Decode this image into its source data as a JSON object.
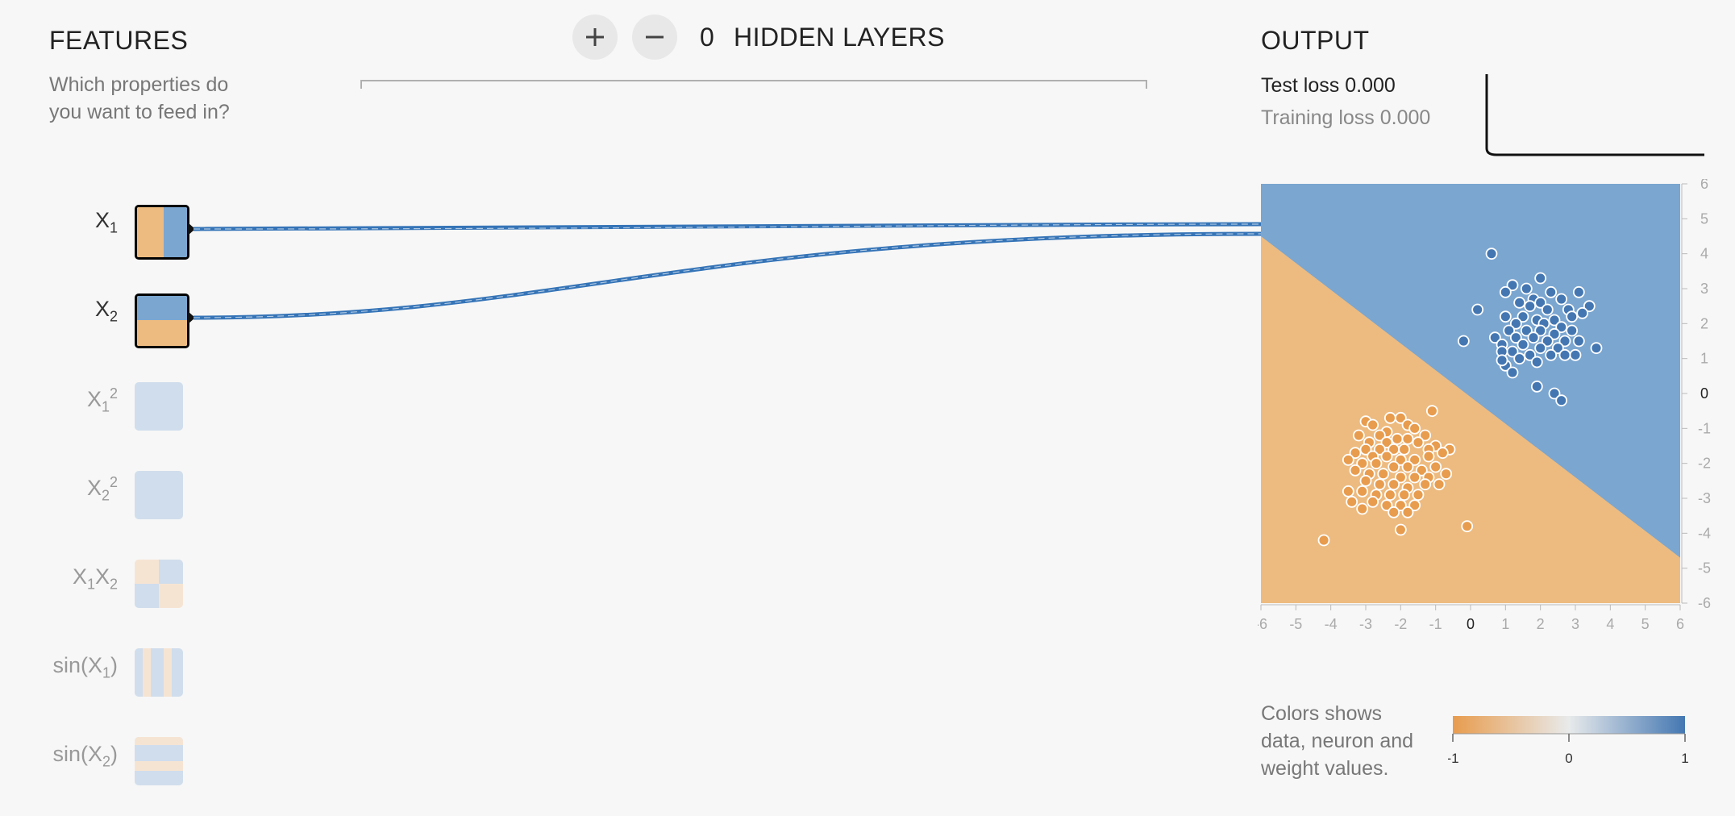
{
  "features": {
    "title": "FEATURES",
    "subtitle_line1": "Which properties do",
    "subtitle_line2": "you want to feed in?",
    "items": [
      {
        "base": "X",
        "sub": "1",
        "sup": "",
        "active": true
      },
      {
        "base": "X",
        "sub": "2",
        "sup": "",
        "active": true
      },
      {
        "base": "X",
        "sub": "1",
        "sup": "2",
        "active": false
      },
      {
        "base": "X",
        "sub": "2",
        "sup": "2",
        "active": false
      },
      {
        "base": "X",
        "sub": "1",
        "base2": "X",
        "sub2": "2",
        "active": false
      },
      {
        "base": "sin(X",
        "sub": "1",
        "tail": ")",
        "active": false
      },
      {
        "base": "sin(X",
        "sub": "2",
        "tail": ")",
        "active": false
      }
    ]
  },
  "hidden_layers": {
    "add_icon": "plus-icon",
    "remove_icon": "minus-icon",
    "count": "0",
    "label": "HIDDEN LAYERS"
  },
  "output": {
    "title": "OUTPUT",
    "test_loss_label": "Test loss",
    "test_loss_value": "0.000",
    "training_loss_label": "Training loss",
    "training_loss_value": "0.000"
  },
  "legend": {
    "line1": "Colors shows",
    "line2": "data, neuron and",
    "line3": "weight values.",
    "ticks": [
      "-1",
      "0",
      "1"
    ]
  },
  "colors": {
    "positive": "#4477b2",
    "negative": "#e89c4e",
    "positive_region": "#7ba6d0",
    "negative_region": "#edbb80",
    "link": "#3574b7"
  },
  "chart_data": {
    "type": "scatter",
    "xlim": [
      -6,
      6
    ],
    "ylim": [
      -6,
      6
    ],
    "x_ticks": [
      "-6",
      "-5",
      "-4",
      "-3",
      "-2",
      "-1",
      "0",
      "1",
      "2",
      "3",
      "4",
      "5",
      "6"
    ],
    "y_ticks": [
      "6",
      "5",
      "4",
      "3",
      "2",
      "1",
      "0",
      "-1",
      "-2",
      "-3",
      "-4",
      "-5",
      "-6"
    ],
    "decision_boundary": {
      "x1": -6,
      "y1": 4.5,
      "x2": 6,
      "y2": -4.7
    },
    "series": [
      {
        "class": "positive",
        "points": [
          [
            0.6,
            4.0
          ],
          [
            2.0,
            3.3
          ],
          [
            1.2,
            3.1
          ],
          [
            1.0,
            2.9
          ],
          [
            1.6,
            3.0
          ],
          [
            2.3,
            2.9
          ],
          [
            3.1,
            2.9
          ],
          [
            1.8,
            2.7
          ],
          [
            2.6,
            2.7
          ],
          [
            1.4,
            2.6
          ],
          [
            2.0,
            2.6
          ],
          [
            3.4,
            2.5
          ],
          [
            0.2,
            2.4
          ],
          [
            1.7,
            2.5
          ],
          [
            2.2,
            2.4
          ],
          [
            3.2,
            2.3
          ],
          [
            2.8,
            2.4
          ],
          [
            1.0,
            2.2
          ],
          [
            1.5,
            2.2
          ],
          [
            1.9,
            2.1
          ],
          [
            2.4,
            2.1
          ],
          [
            2.9,
            2.2
          ],
          [
            1.3,
            2.0
          ],
          [
            2.1,
            2.0
          ],
          [
            2.6,
            1.9
          ],
          [
            1.1,
            1.8
          ],
          [
            1.6,
            1.8
          ],
          [
            2.0,
            1.8
          ],
          [
            2.4,
            1.7
          ],
          [
            2.9,
            1.8
          ],
          [
            0.7,
            1.6
          ],
          [
            -0.2,
            1.5
          ],
          [
            1.3,
            1.6
          ],
          [
            1.8,
            1.6
          ],
          [
            2.2,
            1.5
          ],
          [
            2.7,
            1.5
          ],
          [
            3.1,
            1.5
          ],
          [
            0.9,
            1.4
          ],
          [
            1.5,
            1.4
          ],
          [
            2.0,
            1.3
          ],
          [
            2.5,
            1.3
          ],
          [
            3.6,
            1.3
          ],
          [
            0.9,
            1.2
          ],
          [
            1.2,
            1.2
          ],
          [
            1.7,
            1.1
          ],
          [
            2.3,
            1.1
          ],
          [
            2.7,
            1.1
          ],
          [
            3.0,
            1.1
          ],
          [
            1.0,
            0.8
          ],
          [
            1.4,
            1.0
          ],
          [
            1.9,
            0.9
          ],
          [
            1.2,
            0.6
          ],
          [
            1.9,
            0.2
          ],
          [
            2.4,
            0.0
          ],
          [
            2.6,
            -0.2
          ],
          [
            0.9,
            0.95
          ]
        ]
      },
      {
        "class": "negative",
        "points": [
          [
            -1.1,
            -0.5
          ],
          [
            -2.3,
            -0.7
          ],
          [
            -2.0,
            -0.7
          ],
          [
            -3.0,
            -0.8
          ],
          [
            -2.8,
            -0.9
          ],
          [
            -1.8,
            -0.9
          ],
          [
            -1.6,
            -1.0
          ],
          [
            -2.4,
            -1.1
          ],
          [
            -1.3,
            -1.2
          ],
          [
            -3.2,
            -1.2
          ],
          [
            -2.6,
            -1.2
          ],
          [
            -2.1,
            -1.3
          ],
          [
            -1.8,
            -1.3
          ],
          [
            -2.9,
            -1.4
          ],
          [
            -2.4,
            -1.4
          ],
          [
            -1.5,
            -1.4
          ],
          [
            -1.0,
            -1.5
          ],
          [
            -3.0,
            -1.6
          ],
          [
            -2.6,
            -1.6
          ],
          [
            -2.2,
            -1.6
          ],
          [
            -1.9,
            -1.6
          ],
          [
            -1.2,
            -1.6
          ],
          [
            -0.6,
            -1.6
          ],
          [
            -0.8,
            -1.7
          ],
          [
            -3.3,
            -1.7
          ],
          [
            -2.8,
            -1.8
          ],
          [
            -2.4,
            -1.8
          ],
          [
            -2.0,
            -1.9
          ],
          [
            -1.6,
            -1.9
          ],
          [
            -1.2,
            -1.8
          ],
          [
            -3.5,
            -1.9
          ],
          [
            -3.1,
            -2.0
          ],
          [
            -2.7,
            -2.0
          ],
          [
            -2.2,
            -2.1
          ],
          [
            -1.8,
            -2.1
          ],
          [
            -1.4,
            -2.2
          ],
          [
            -1.0,
            -2.1
          ],
          [
            -3.3,
            -2.2
          ],
          [
            -2.9,
            -2.3
          ],
          [
            -2.5,
            -2.3
          ],
          [
            -2.0,
            -2.4
          ],
          [
            -1.6,
            -2.4
          ],
          [
            -1.2,
            -2.4
          ],
          [
            -0.7,
            -2.3
          ],
          [
            -3.0,
            -2.5
          ],
          [
            -2.6,
            -2.6
          ],
          [
            -2.2,
            -2.6
          ],
          [
            -1.8,
            -2.7
          ],
          [
            -1.3,
            -2.6
          ],
          [
            -0.9,
            -2.6
          ],
          [
            -3.5,
            -2.8
          ],
          [
            -3.1,
            -2.8
          ],
          [
            -2.7,
            -2.9
          ],
          [
            -2.3,
            -2.9
          ],
          [
            -1.9,
            -2.9
          ],
          [
            -1.5,
            -2.9
          ],
          [
            -3.4,
            -3.1
          ],
          [
            -2.8,
            -3.1
          ],
          [
            -2.4,
            -3.2
          ],
          [
            -2.0,
            -3.2
          ],
          [
            -1.6,
            -3.2
          ],
          [
            -3.1,
            -3.3
          ],
          [
            -2.2,
            -3.4
          ],
          [
            -1.8,
            -3.4
          ],
          [
            -2.0,
            -3.9
          ],
          [
            -0.1,
            -3.8
          ],
          [
            -4.2,
            -4.2
          ]
        ]
      }
    ]
  }
}
